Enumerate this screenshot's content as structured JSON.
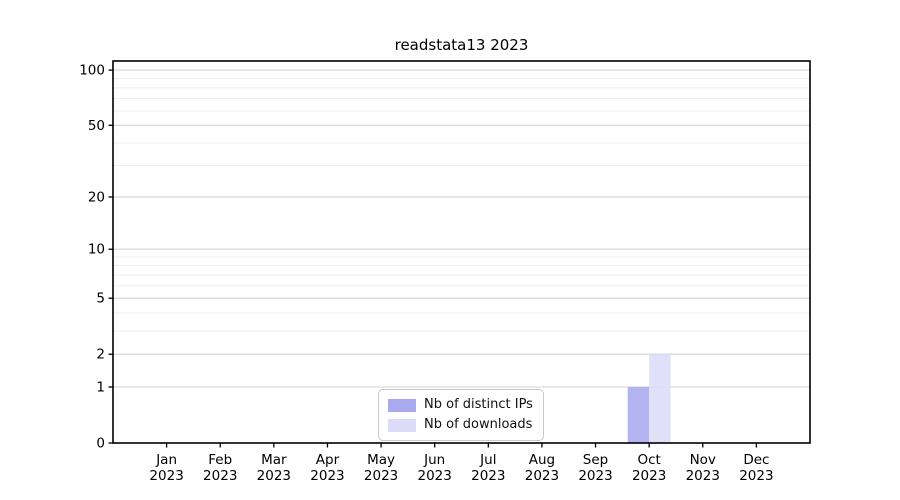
{
  "title": "readstata13 2023",
  "legend": {
    "items": [
      {
        "label": "Nb of distinct IPs",
        "color": "#a9a9f0"
      },
      {
        "label": "Nb of downloads",
        "color": "#dcdcf8"
      }
    ]
  },
  "chart_data": {
    "type": "bar",
    "title": "readstata13 2023",
    "categories": [
      "Jan 2023",
      "Feb 2023",
      "Mar 2023",
      "Apr 2023",
      "May 2023",
      "Jun 2023",
      "Jul 2023",
      "Aug 2023",
      "Sep 2023",
      "Oct 2023",
      "Nov 2023",
      "Dec 2023"
    ],
    "series": [
      {
        "name": "Nb of distinct IPs",
        "color": "#a9a9f0",
        "values": [
          0,
          0,
          0,
          0,
          0,
          0,
          0,
          0,
          0,
          1,
          0,
          0
        ]
      },
      {
        "name": "Nb of downloads",
        "color": "#dcdcf8",
        "values": [
          0,
          0,
          0,
          0,
          0,
          0,
          0,
          0,
          0,
          2,
          0,
          0
        ]
      }
    ],
    "xlabel": "",
    "ylabel": "",
    "yscale": "log1p",
    "ylim": [
      0,
      112
    ],
    "y_major_ticks": [
      0,
      1,
      2,
      5,
      10,
      20,
      50,
      100
    ],
    "y_minor_ticks": [
      3,
      4,
      6,
      7,
      8,
      9,
      30,
      40,
      60,
      70,
      80,
      90
    ],
    "grid": "horizontal",
    "legend_position": "bottom-center",
    "colors": {
      "grid_major": "#d3d3d3",
      "grid_minor": "#eeeeee",
      "axis": "#000000",
      "background": "#ffffff"
    }
  }
}
